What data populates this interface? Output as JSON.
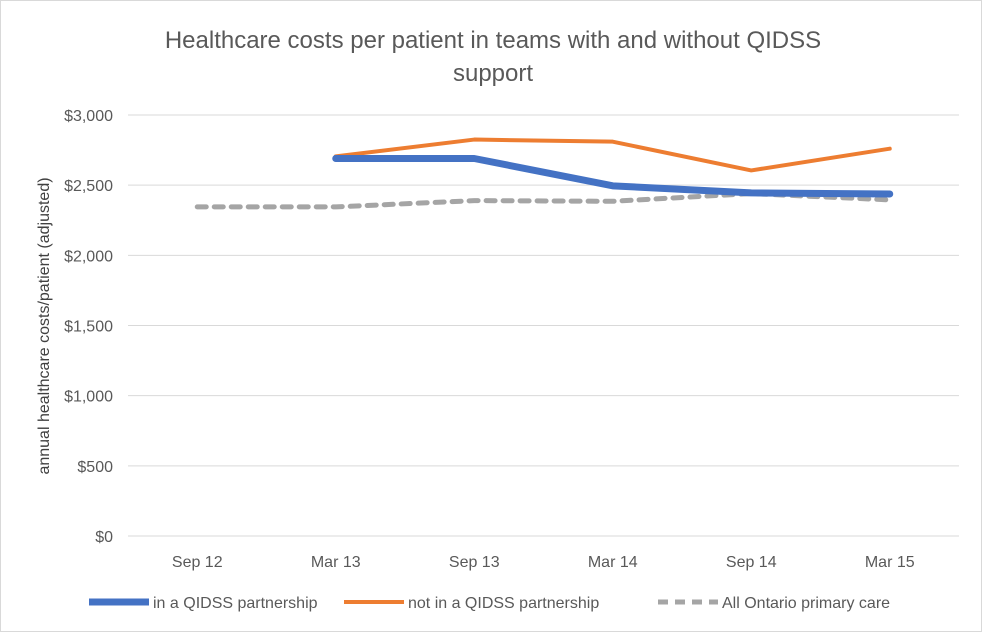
{
  "chart_data": {
    "type": "line",
    "title": "Healthcare costs per patient in teams with and without QIDSS support",
    "title_lines": [
      "Healthcare costs per patient in teams with and without QIDSS",
      "support"
    ],
    "xlabel": "",
    "ylabel": "annual healthcare costs/patient (adjusted)",
    "categories": [
      "Sep 12",
      "Mar 13",
      "Sep 13",
      "Mar 14",
      "Sep 14",
      "Mar 15"
    ],
    "ylim": [
      0,
      3000
    ],
    "yticks": [
      0,
      500,
      1000,
      1500,
      2000,
      2500,
      3000
    ],
    "ytick_labels": [
      "$0",
      "$500",
      "$1,000",
      "$1,500",
      "$2,000",
      "$2,500",
      "$3,000"
    ],
    "grid": true,
    "legend_position": "bottom",
    "series": [
      {
        "name": "in a QIDSS partnership",
        "color": "#4472c4",
        "style": "solid-thick",
        "values": [
          null,
          2690,
          2690,
          2495,
          2445,
          2437
        ]
      },
      {
        "name": "not in a QIDSS partnership",
        "color": "#ed7d31",
        "style": "solid",
        "values": [
          null,
          2705,
          2825,
          2810,
          2605,
          2760
        ]
      },
      {
        "name": "All Ontario primary care",
        "color": "#a5a5a5",
        "style": "dashed",
        "values": [
          2345,
          2345,
          2390,
          2385,
          2440,
          2395
        ]
      }
    ]
  }
}
